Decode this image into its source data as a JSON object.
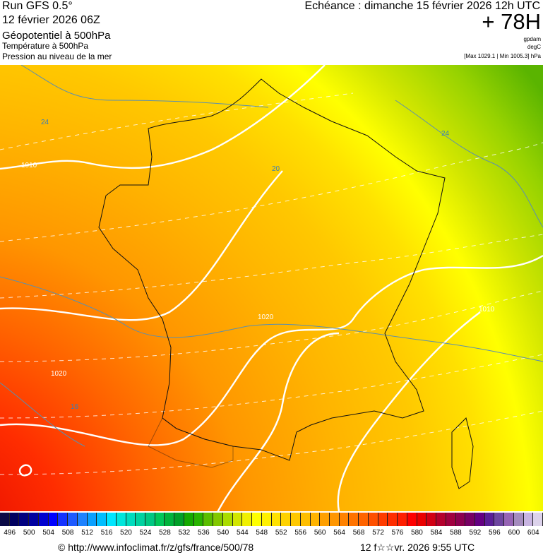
{
  "header": {
    "run": "Run GFS 0.5°",
    "run_date": "12 février 2026 06Z",
    "field1": "Géopotentiel à 500hPa",
    "field2": "Température à 500hPa",
    "field3": "Pression au niveau de la mer",
    "echeance": "Echéance : dimanche 15 février 2026 12h UTC",
    "lead": "+ 78H",
    "unit1": "gpdam",
    "unit2": "degC",
    "pressure_range": "[Max 1029.1 | Min 1005.3] hPa"
  },
  "map": {
    "contour_labels": [
      "24",
      "1010",
      "1020",
      "1020",
      "16",
      "24",
      "1010",
      "20"
    ]
  },
  "colorbar": {
    "labels": [
      "496",
      "500",
      "504",
      "508",
      "512",
      "516",
      "520",
      "524",
      "528",
      "532",
      "536",
      "540",
      "544",
      "548",
      "552",
      "556",
      "560",
      "564",
      "568",
      "572",
      "576",
      "580",
      "584",
      "588",
      "592",
      "596",
      "600",
      "604"
    ],
    "colors": [
      "#0a0a46",
      "#000060",
      "#000080",
      "#0000a0",
      "#0000d0",
      "#0000ff",
      "#1432ff",
      "#1e5aff",
      "#1e82ff",
      "#0aa0ff",
      "#00beff",
      "#00e6ff",
      "#00e6dc",
      "#00dcbe",
      "#00d2a0",
      "#00c882",
      "#00c85a",
      "#00b43c",
      "#00a028",
      "#14aa00",
      "#28b400",
      "#5abe00",
      "#82c800",
      "#aadc00",
      "#d2e600",
      "#f0f000",
      "#ffff00",
      "#fff000",
      "#ffe100",
      "#ffd200",
      "#ffc800",
      "#ffbe00",
      "#ffb400",
      "#ffa000",
      "#ff9600",
      "#ff8200",
      "#ff7300",
      "#ff6400",
      "#ff5000",
      "#ff3c00",
      "#ff2d00",
      "#ff1e00",
      "#ff0000",
      "#eb0000",
      "#d20014",
      "#b4002d",
      "#a00040",
      "#8c0050",
      "#780064",
      "#640082",
      "#5a1e96",
      "#6e46a0",
      "#9664b4",
      "#a58cbe",
      "#c8b4e1",
      "#dcd2eb"
    ]
  },
  "footer": {
    "url": "© http://www.infoclimat.fr/z/gfs/france/500/78",
    "timestamp": "12 f☆☆vr. 2026  9:55 UTC"
  }
}
